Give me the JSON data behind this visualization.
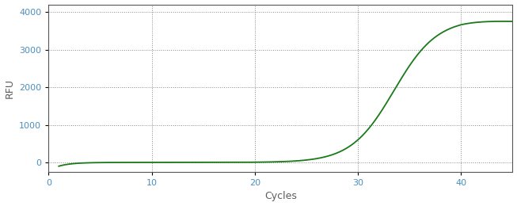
{
  "title": "",
  "xlabel": "Cycles",
  "ylabel": "RFU",
  "line_color": "#1a7a1a",
  "line_width": 1.3,
  "background_color": "#ffffff",
  "grid_color": "#888888",
  "xlim": [
    0,
    45
  ],
  "ylim": [
    -250,
    4200
  ],
  "xticks": [
    0,
    10,
    20,
    30,
    40
  ],
  "yticks": [
    0,
    1000,
    2000,
    3000,
    4000
  ],
  "sigmoid_L": 3820,
  "sigmoid_k": 0.48,
  "sigmoid_x0": 33.5,
  "plateau_drop_start": 40,
  "plateau_drop_rate": 0.003,
  "xlabel_color": "#5b5b5b",
  "ylabel_color": "#5b5b5b",
  "tick_color": "#4a8fc0"
}
